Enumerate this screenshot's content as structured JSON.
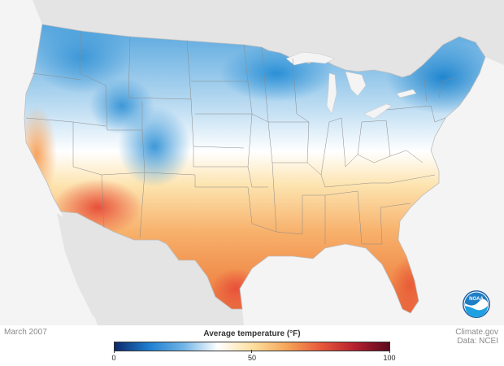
{
  "map": {
    "date": "March 2007",
    "credit_line1": "Climate.gov",
    "credit_line2": "Data: NCEI",
    "logo_text": "NOAA"
  },
  "legend": {
    "title": "Average temperature (°F)",
    "min_label": "0",
    "mid_label": "50",
    "max_label": "100",
    "colors": [
      "#0c2a6b",
      "#1f7ed0",
      "#6fb4e6",
      "#ffffff",
      "#fde0a0",
      "#f5a65a",
      "#e8583a",
      "#b51f2e",
      "#5a0a1e"
    ]
  },
  "colors": {
    "land": "#ffffff",
    "ocean": "#f4f4f4",
    "neighbor_land": "#e4e4e4",
    "cold": "#2f8bd4",
    "warm": "#f07a3c"
  }
}
